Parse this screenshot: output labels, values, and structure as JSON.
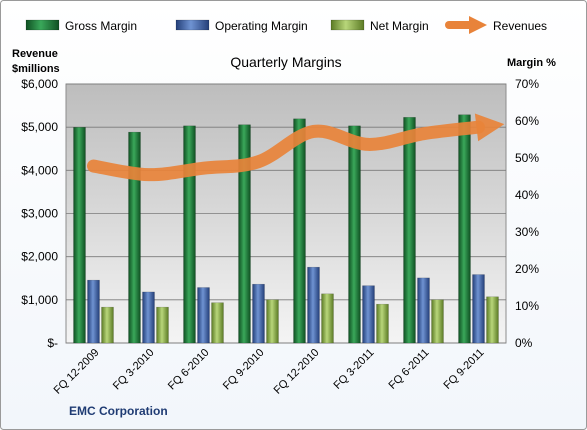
{
  "chart_data": {
    "type": "bar",
    "title": "Quarterly Margins",
    "company": "EMC Corporation",
    "categories": [
      "FQ 12-2009",
      "FQ 3-2010",
      "FQ 6-2010",
      "FQ 9-2010",
      "FQ 12-2010",
      "FQ 3-2011",
      "FQ 6-2011",
      "FQ 9-2011"
    ],
    "y_left": {
      "label_line1": "Revenue",
      "label_line2": "$millions",
      "ticks": [
        "$-",
        "$1,000",
        "$2,000",
        "$3,000",
        "$4,000",
        "$5,000",
        "$6,000"
      ],
      "ylim": [
        0,
        6000
      ]
    },
    "y_right": {
      "label": "Margin %",
      "ticks": [
        "0%",
        "10%",
        "20%",
        "30%",
        "40%",
        "50%",
        "60%",
        "70%"
      ],
      "ylim": [
        0,
        70
      ]
    },
    "series": [
      {
        "name": "Gross Margin",
        "axis": "right",
        "kind": "bar",
        "color": "#1e7a3a",
        "values": [
          58.3,
          57.0,
          58.7,
          59.0,
          60.6,
          58.7,
          61.0,
          61.7
        ]
      },
      {
        "name": "Operating Margin",
        "axis": "right",
        "kind": "bar",
        "color": "#3f63a8",
        "values": [
          17.0,
          13.8,
          15.0,
          15.9,
          20.5,
          15.5,
          17.6,
          18.5
        ]
      },
      {
        "name": "Net Margin",
        "axis": "right",
        "kind": "bar",
        "color": "#8fb04a",
        "values": [
          9.7,
          9.7,
          10.9,
          11.7,
          13.3,
          10.5,
          11.7,
          12.5
        ]
      },
      {
        "name": "Revenues",
        "axis": "left",
        "kind": "line",
        "color": "#e8833a",
        "values": [
          4100,
          3900,
          4050,
          4200,
          4900,
          4600,
          4850,
          5000
        ]
      }
    ],
    "grid": true,
    "legend_position": "top"
  }
}
